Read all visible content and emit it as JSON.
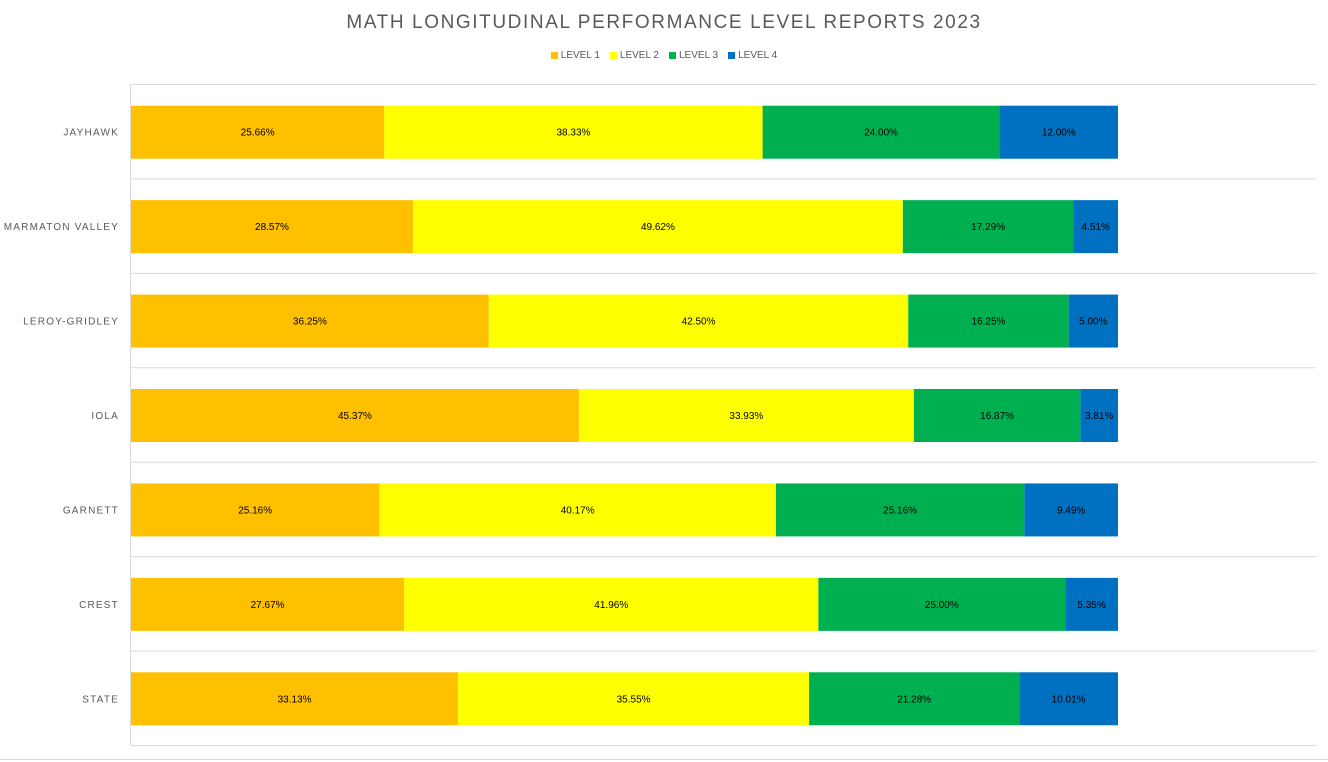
{
  "chart_data": {
    "type": "bar",
    "orientation": "horizontal",
    "stacked": "percent",
    "title": "MATH LONGITUDINAL PERFORMANCE LEVEL REPORTS 2023",
    "legend_position": "top",
    "grid": "horizontal separators between categories",
    "categories": [
      "JAYHAWK",
      "MARMATON VALLEY",
      "LEROY-GRIDLEY",
      "IOLA",
      "GARNETT",
      "CREST",
      "STATE"
    ],
    "series": [
      {
        "name": "LEVEL 1",
        "color": "#FFC000",
        "values": [
          25.66,
          28.57,
          36.25,
          45.37,
          25.16,
          27.67,
          33.13
        ],
        "labels": [
          "25.66%",
          "28.57%",
          "36.25%",
          "45.37%",
          "25.16%",
          "27.67%",
          "33.13%"
        ]
      },
      {
        "name": "LEVEL 2",
        "color": "#FFFF00",
        "values": [
          38.33,
          49.62,
          42.5,
          33.93,
          40.17,
          41.96,
          35.55
        ],
        "labels": [
          "38.33%",
          "49.62%",
          "42.50%",
          "33.93%",
          "40.17%",
          "41.96%",
          "35.55%"
        ]
      },
      {
        "name": "LEVEL 3",
        "color": "#00B050",
        "values": [
          24.0,
          17.29,
          16.25,
          16.87,
          25.16,
          25.0,
          21.28
        ],
        "labels": [
          "24.00%",
          "17.29%",
          "16.25%",
          "16.87%",
          "25.16%",
          "25.00%",
          "21.28%"
        ]
      },
      {
        "name": "LEVEL 4",
        "color": "#0070C0",
        "values": [
          12.0,
          4.51,
          5.0,
          3.81,
          9.49,
          5.35,
          10.01
        ],
        "labels": [
          "12.00%",
          "4.51%",
          "5.00%",
          "3.81%",
          "9.49%",
          "5.35%",
          "10.01%"
        ]
      }
    ]
  }
}
